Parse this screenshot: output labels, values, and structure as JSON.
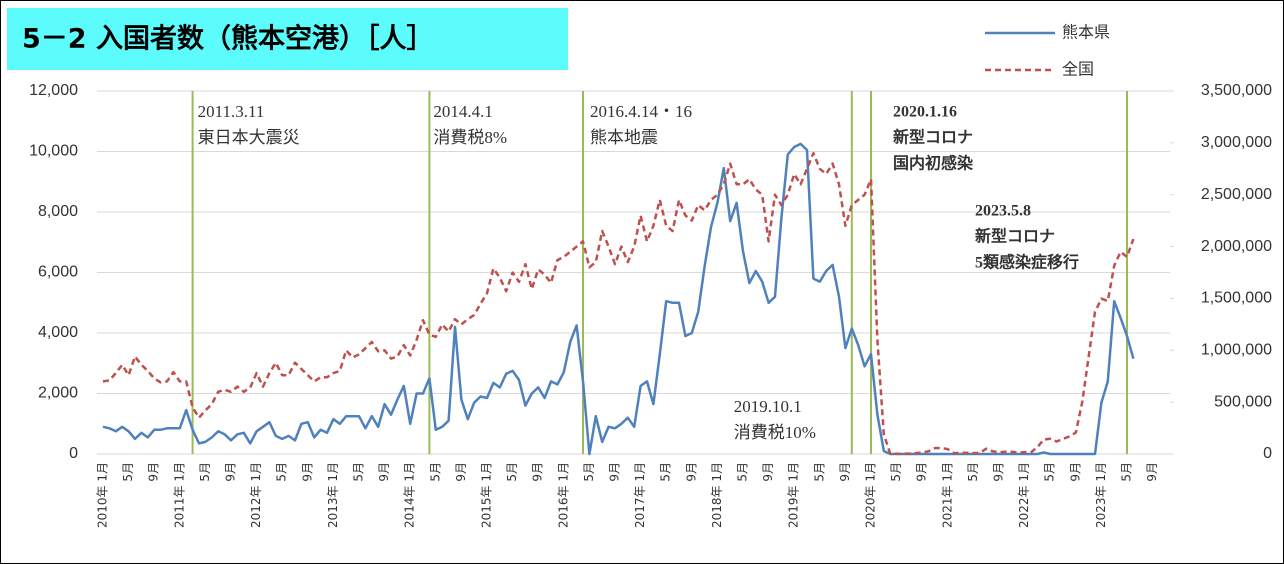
{
  "chart_data": {
    "type": "line",
    "title": "5－2 入国者数（熊本空港）［人］",
    "title_background": "#5cfcfc",
    "categories": [
      "2010年 1月",
      null,
      null,
      null,
      "5月",
      null,
      null,
      null,
      "9月",
      null,
      null,
      null,
      "2011年 1月",
      null,
      null,
      null,
      "5月",
      null,
      null,
      null,
      "9月",
      null,
      null,
      null,
      "2012年 1月",
      null,
      null,
      null,
      "5月",
      null,
      null,
      null,
      "9月",
      null,
      null,
      null,
      "2013年 1月",
      null,
      null,
      null,
      "5月",
      null,
      null,
      null,
      "9月",
      null,
      null,
      null,
      "2014年 1月",
      null,
      null,
      null,
      "5月",
      null,
      null,
      null,
      "9月",
      null,
      null,
      null,
      "2015年 1月",
      null,
      null,
      null,
      "5月",
      null,
      null,
      null,
      "9月",
      null,
      null,
      null,
      "2016年 1月",
      null,
      null,
      null,
      "5月",
      null,
      null,
      null,
      "9月",
      null,
      null,
      null,
      "2017年 1月",
      null,
      null,
      null,
      "5月",
      null,
      null,
      null,
      "9月",
      null,
      null,
      null,
      "2018年 1月",
      null,
      null,
      null,
      "5月",
      null,
      null,
      null,
      "9月",
      null,
      null,
      null,
      "2019年 1月",
      null,
      null,
      null,
      "5月",
      null,
      null,
      null,
      "9月",
      null,
      null,
      null,
      "2020年 1月",
      null,
      null,
      null,
      "5月",
      null,
      null,
      null,
      "9月",
      null,
      null,
      null,
      "2021年 1月",
      null,
      null,
      null,
      "5月",
      null,
      null,
      null,
      "9月",
      null,
      null,
      null,
      "2022年 1月",
      null,
      null,
      null,
      "5月",
      null,
      null,
      null,
      "9月",
      null,
      null,
      null,
      "2023年 1月",
      null,
      null,
      null,
      "5月",
      null,
      null,
      null,
      "9月",
      null,
      null,
      null
    ],
    "series": [
      {
        "name": "熊本県",
        "color": "#4f81bd",
        "dash": false,
        "axis": "y",
        "values": [
          900,
          850,
          750,
          900,
          750,
          500,
          700,
          550,
          800,
          800,
          850,
          850,
          850,
          1450,
          800,
          350,
          400,
          550,
          750,
          650,
          450,
          650,
          700,
          350,
          750,
          900,
          1050,
          600,
          500,
          600,
          450,
          1000,
          1050,
          550,
          800,
          700,
          1150,
          1000,
          1250,
          1250,
          1250,
          850,
          1250,
          900,
          1650,
          1300,
          1800,
          2250,
          1000,
          2000,
          2000,
          2500,
          800,
          900,
          1100,
          4200,
          1800,
          1150,
          1700,
          1900,
          1850,
          2350,
          2200,
          2650,
          2750,
          2450,
          1600,
          2000,
          2200,
          1850,
          2400,
          2300,
          2700,
          3700,
          4250,
          2400,
          0,
          1250,
          400,
          900,
          850,
          1000,
          1200,
          900,
          2250,
          2400,
          1650,
          3300,
          5050,
          5000,
          5000,
          3900,
          4000,
          4700,
          6200,
          7500,
          8300,
          9450,
          7700,
          8300,
          6700,
          5650,
          6050,
          5700,
          5000,
          5200,
          7800,
          9900,
          10150,
          10250,
          10050,
          5800,
          5700,
          6050,
          6250,
          5200,
          3500,
          4150,
          3600,
          2900,
          3300,
          1300,
          100,
          0,
          0,
          0,
          0,
          0,
          0,
          0,
          0,
          0,
          0,
          0,
          0,
          0,
          0,
          0,
          0,
          0,
          0,
          0,
          0,
          0,
          0,
          0,
          0,
          50,
          0,
          0,
          0,
          0,
          0,
          0,
          0,
          0,
          1700,
          2400,
          5050,
          4500,
          3900,
          3150,
          null,
          null,
          null,
          null,
          null,
          null
        ]
      },
      {
        "name": "全国",
        "color": "#c0504d",
        "dash": true,
        "axis": "y2",
        "values": [
          700000,
          710000,
          780000,
          860000,
          760000,
          940000,
          860000,
          800000,
          730000,
          690000,
          700000,
          790000,
          700000,
          700000,
          450000,
          350000,
          420000,
          480000,
          600000,
          620000,
          600000,
          650000,
          600000,
          640000,
          780000,
          650000,
          780000,
          880000,
          760000,
          760000,
          880000,
          820000,
          760000,
          700000,
          740000,
          740000,
          780000,
          800000,
          1000000,
          930000,
          960000,
          1020000,
          1080000,
          990000,
          1000000,
          920000,
          940000,
          1050000,
          950000,
          1100000,
          1290000,
          1150000,
          1130000,
          1250000,
          1180000,
          1300000,
          1250000,
          1300000,
          1340000,
          1450000,
          1550000,
          1790000,
          1700000,
          1570000,
          1750000,
          1660000,
          1830000,
          1590000,
          1780000,
          1730000,
          1650000,
          1870000,
          1900000,
          1950000,
          2000000,
          2050000,
          1800000,
          1850000,
          2150000,
          2000000,
          1830000,
          2000000,
          1850000,
          2000000,
          2300000,
          2050000,
          2200000,
          2450000,
          2200000,
          2150000,
          2450000,
          2300000,
          2250000,
          2400000,
          2350000,
          2450000,
          2500000,
          2600000,
          2800000,
          2600000,
          2600000,
          2650000,
          2550000,
          2500000,
          2050000,
          2500000,
          2400000,
          2500000,
          2700000,
          2600000,
          2750000,
          2900000,
          2750000,
          2700000,
          2800000,
          2600000,
          2200000,
          2400000,
          2450000,
          2500000,
          2650000,
          1100000,
          190000,
          2900,
          1700,
          2600,
          3800,
          8700,
          13700,
          27400,
          56700,
          58700,
          46500,
          7400,
          12300,
          10900,
          10000,
          9300,
          51000,
          25900,
          17700,
          22100,
          21000,
          12100,
          17800,
          16700,
          66100,
          139500,
          147000,
          120400,
          144500,
          169900,
          206600,
          498600,
          934500,
          1370000,
          1497000,
          1475000,
          1817000,
          1949000,
          1900000,
          2073000,
          null,
          null,
          null,
          null,
          null,
          null
        ]
      }
    ],
    "ylim": [
      0,
      12000
    ],
    "yticks": [
      0,
      {
        "value": 2000,
        "label": "2,000"
      },
      {
        "value": 4000,
        "label": "4,000"
      },
      {
        "value": 6000,
        "label": "6,000"
      },
      {
        "value": 8000,
        "label": "8,000"
      },
      {
        "value": 10000,
        "label": "10,000"
      },
      {
        "value": 12000,
        "label": "12,000"
      }
    ],
    "y2lim": [
      0,
      3500000
    ],
    "y2ticks": [
      0,
      {
        "value": 500000,
        "label": "500,000"
      },
      {
        "value": 1000000,
        "label": "1,000,000"
      },
      {
        "value": 1500000,
        "label": "1,500,000"
      },
      {
        "value": 2000000,
        "label": "2,000,000"
      },
      {
        "value": 2500000,
        "label": "2,500,000"
      },
      {
        "value": 3000000,
        "label": "3,000,000"
      },
      {
        "value": 3500000,
        "label": "3,500,000"
      }
    ],
    "grid": true,
    "legend": "top-right",
    "event_line_color": "#9bbb59",
    "annotations": [
      {
        "at": 14,
        "lines": [
          "2011.3.11",
          "東日本大震災"
        ],
        "color": "#222222",
        "bold": false
      },
      {
        "at": 51,
        "lines": [
          "2014.4.1",
          "消費税8%"
        ],
        "color": "#222222",
        "bold": false
      },
      {
        "at": 75,
        "lines": [
          "2016.4.14・16",
          "熊本地震"
        ],
        "color": "#222222",
        "bold": false
      },
      {
        "at": 117,
        "lines": [
          "2019.10.1",
          "消費税10%"
        ],
        "color": "#222222",
        "bold": false
      },
      {
        "at": 120,
        "lines": [
          "2020.1.16",
          "新型コロナ",
          "国内初感染"
        ],
        "color": "#4f6228",
        "bold": true
      },
      {
        "at": 160,
        "lines": [
          "2023.5.8",
          "新型コロナ",
          "5類感染症移行"
        ],
        "color": "#000000",
        "bold": true
      }
    ]
  }
}
